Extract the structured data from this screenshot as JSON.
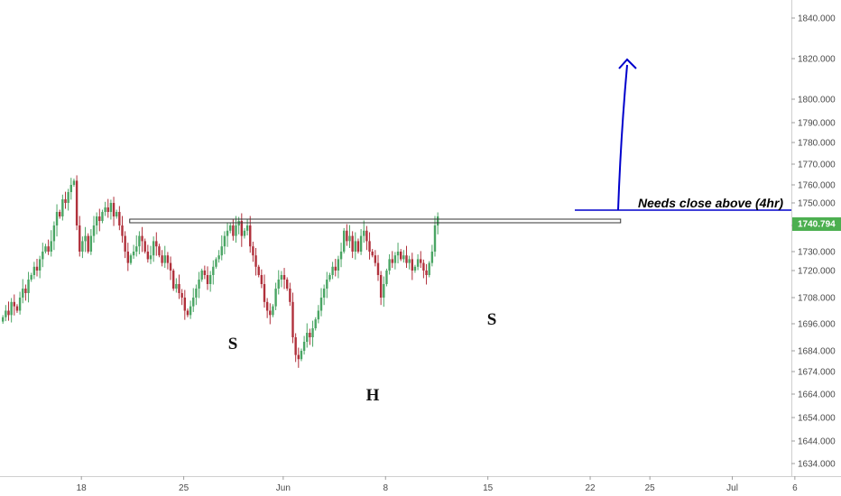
{
  "chart_data": {
    "type": "candlestick",
    "title": "",
    "ylabel": "",
    "xlabel": "",
    "ylim": [
      1626,
      1850
    ],
    "y_ticks": [
      1634,
      1644,
      1654,
      1664,
      1674,
      1684,
      1696,
      1708,
      1720,
      1730,
      1740,
      1750,
      1760,
      1770,
      1780,
      1790,
      1800,
      1820,
      1840
    ],
    "y_tick_labels": [
      "1634.000",
      "1644.000",
      "1654.000",
      "1664.000",
      "1674.000",
      "1684.000",
      "1696.000",
      "1708.000",
      "1720.000",
      "1730.000",
      "1740.000",
      "1750.000",
      "1760.000",
      "1770.000",
      "1780.000",
      "1790.000",
      "1800.000",
      "1820.000",
      "1840.000"
    ],
    "x_ticks": [
      {
        "label": "18",
        "bar": 28
      },
      {
        "label": "25",
        "bar": 64
      },
      {
        "label": "Jun",
        "bar": 99
      },
      {
        "label": "8",
        "bar": 135
      },
      {
        "label": "15",
        "bar": 171
      },
      {
        "label": "22",
        "bar": 207
      },
      {
        "label": "25",
        "bar": 228
      },
      {
        "label": "Jul",
        "bar": 257
      },
      {
        "label": "6",
        "bar": 279
      }
    ],
    "grid": false,
    "colors": {
      "up": "#4aa564",
      "down": "#b0303b",
      "last_price": "#4caf50",
      "arrow": "#0000cc"
    },
    "candles_close_path": [
      1699,
      1702,
      1700,
      1706,
      1704,
      1702,
      1708,
      1712,
      1710,
      1716,
      1718,
      1722,
      1720,
      1726,
      1730,
      1732,
      1730,
      1734,
      1740,
      1746,
      1744,
      1752,
      1750,
      1756,
      1760,
      1762,
      1740,
      1730,
      1734,
      1736,
      1730,
      1736,
      1740,
      1744,
      1742,
      1746,
      1748,
      1746,
      1750,
      1744,
      1746,
      1740,
      1736,
      1730,
      1724,
      1728,
      1730,
      1732,
      1736,
      1734,
      1730,
      1726,
      1728,
      1734,
      1732,
      1728,
      1724,
      1728,
      1724,
      1720,
      1712,
      1714,
      1710,
      1708,
      1702,
      1700,
      1704,
      1708,
      1712,
      1716,
      1720,
      1718,
      1714,
      1718,
      1722,
      1726,
      1728,
      1732,
      1736,
      1738,
      1740,
      1736,
      1740,
      1742,
      1736,
      1738,
      1740,
      1732,
      1728,
      1722,
      1718,
      1714,
      1706,
      1702,
      1700,
      1704,
      1712,
      1716,
      1718,
      1716,
      1712,
      1706,
      1690,
      1682,
      1680,
      1684,
      1688,
      1692,
      1690,
      1694,
      1698,
      1702,
      1708,
      1712,
      1716,
      1718,
      1722,
      1720,
      1726,
      1730,
      1738,
      1734,
      1736,
      1730,
      1734,
      1730,
      1736,
      1738,
      1734,
      1730,
      1728,
      1724,
      1718,
      1708,
      1714,
      1720,
      1726,
      1724,
      1728,
      1730,
      1726,
      1728,
      1724,
      1726,
      1720,
      1722,
      1726,
      1724,
      1720,
      1718,
      1724,
      1730,
      1740,
      1744
    ],
    "last_price": 1740.794,
    "last_price_label": "1740.794",
    "levels": [
      {
        "name": "neckline-upper",
        "value": 1742.8,
        "from_bar": 45,
        "to_bar": 205
      },
      {
        "name": "neckline-lower",
        "value": 1741.2,
        "from_bar": 45,
        "to_bar": 205
      },
      {
        "name": "close-above-level",
        "value": 1746.8,
        "from_bar": 190,
        "to_bar": 280
      }
    ],
    "annotations": [
      {
        "text": "S",
        "bar": 70
      },
      {
        "text": "H",
        "bar": 130
      },
      {
        "text": "S",
        "bar": 170
      },
      {
        "text": "Needs close above (4hr)"
      }
    ]
  }
}
